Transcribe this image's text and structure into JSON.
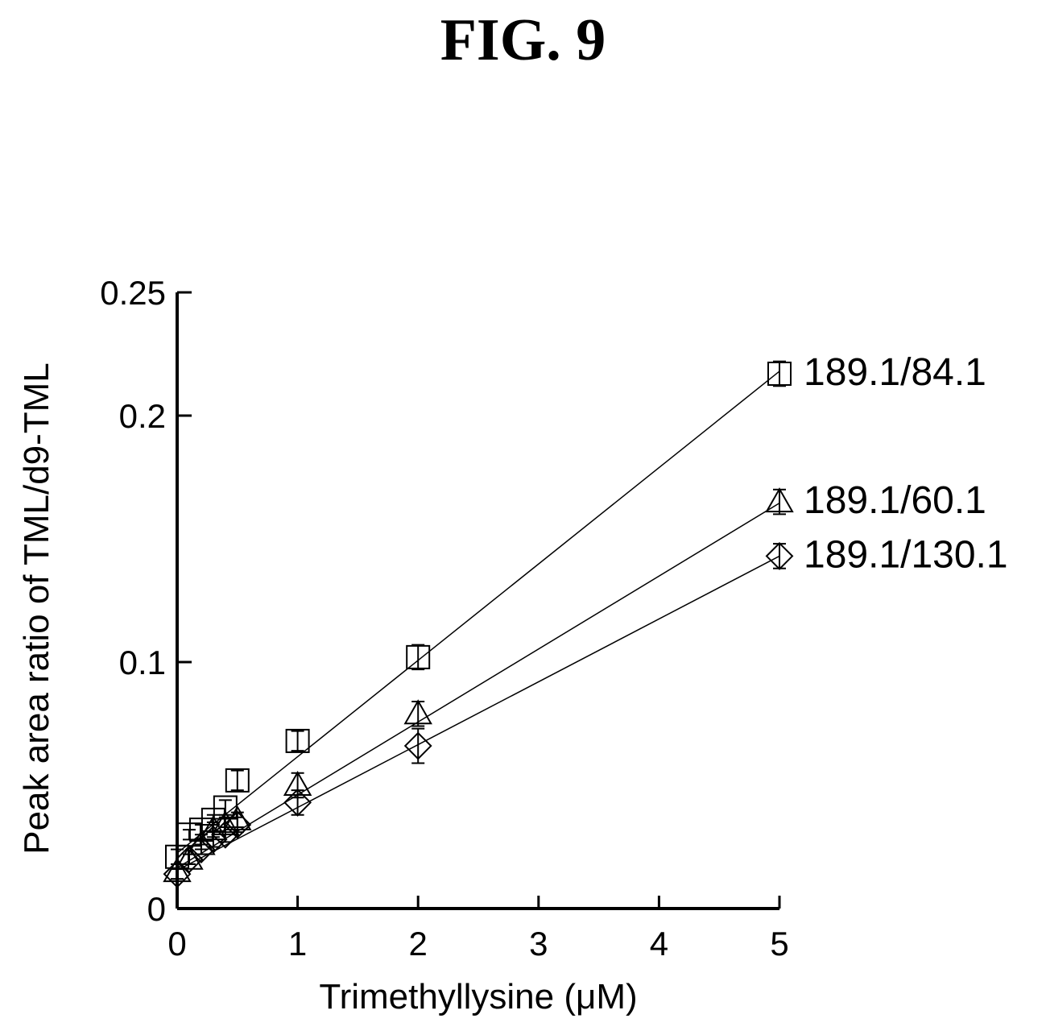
{
  "figure_title": "FIG. 9",
  "chart_data": {
    "type": "scatter",
    "xlabel": "Trimethyllysine (μM)",
    "ylabel": "Peak area ratio of TML/d9-TML",
    "xlim": [
      0,
      5
    ],
    "ylim": [
      0,
      0.25
    ],
    "x_ticks": [
      0,
      1,
      2,
      3,
      4,
      5
    ],
    "x_tick_labels": [
      "0",
      "1",
      "2",
      "3",
      "4",
      "5"
    ],
    "y_ticks": [
      0,
      0.1,
      0.2,
      0.25
    ],
    "y_tick_labels": [
      "0",
      "0.1",
      "0.2",
      "0.25"
    ],
    "grid": false,
    "series": [
      {
        "name": "189.1/84.1",
        "marker": "square",
        "x": [
          0,
          0.1,
          0.2,
          0.3,
          0.4,
          0.5,
          1,
          2,
          5
        ],
        "y": [
          0.021,
          0.03,
          0.032,
          0.036,
          0.041,
          0.052,
          0.068,
          0.102,
          0.217
        ],
        "error": [
          0.003,
          0.002,
          0.002,
          0.002,
          0.003,
          0.004,
          0.004,
          0.005,
          0.005
        ],
        "fit": [
          0.0225,
          0.0391
        ]
      },
      {
        "name": "189.1/60.1",
        "marker": "triangle",
        "x": [
          0,
          0.1,
          0.2,
          0.3,
          0.4,
          0.5,
          1,
          2,
          5
        ],
        "y": [
          0.015,
          0.02,
          0.026,
          0.032,
          0.034,
          0.036,
          0.05,
          0.079,
          0.165
        ],
        "error": [
          0.003,
          0.002,
          0.002,
          0.003,
          0.003,
          0.003,
          0.005,
          0.005,
          0.005
        ],
        "fit": [
          0.0165,
          0.0296
        ]
      },
      {
        "name": "189.1/130.1",
        "marker": "diamond",
        "x": [
          0,
          0.1,
          0.2,
          0.3,
          0.4,
          0.5,
          1,
          2,
          5
        ],
        "y": [
          0.014,
          0.02,
          0.024,
          0.028,
          0.03,
          0.034,
          0.043,
          0.066,
          0.143
        ],
        "error": [
          0.002,
          0.002,
          0.002,
          0.003,
          0.003,
          0.003,
          0.005,
          0.007,
          0.005
        ],
        "fit": [
          0.0155,
          0.0255
        ]
      }
    ]
  }
}
